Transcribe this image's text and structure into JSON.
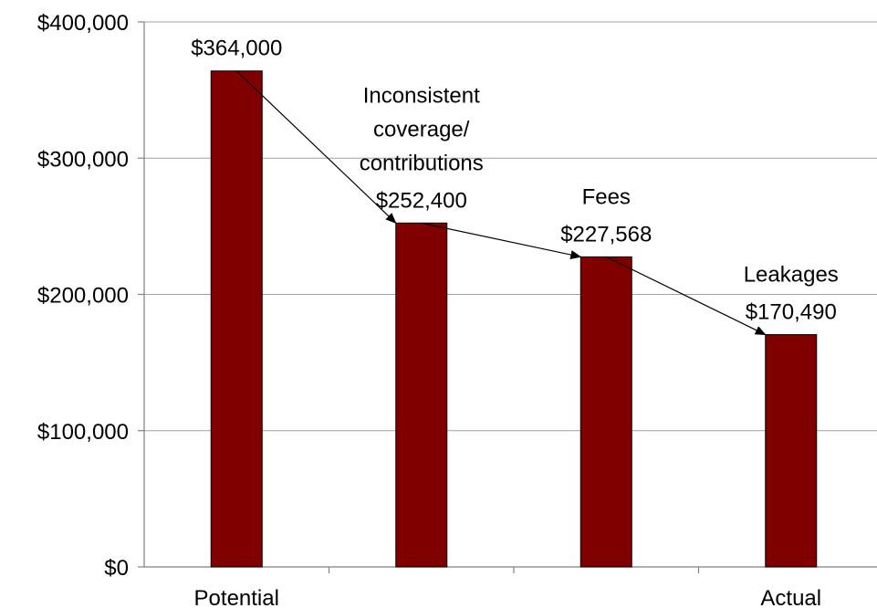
{
  "chart_data": {
    "type": "bar",
    "bars": [
      {
        "category": "Potential",
        "value": 364000,
        "label": "$364,000",
        "annotation": []
      },
      {
        "category": "",
        "value": 252400,
        "label": "$252,400",
        "annotation": [
          "Inconsistent",
          "coverage/",
          "contributions"
        ]
      },
      {
        "category": "",
        "value": 227568,
        "label": "$227,568",
        "annotation": [
          "Fees"
        ]
      },
      {
        "category": "Actual",
        "value": 170490,
        "label": "$170,490",
        "annotation": [
          "Leakages"
        ]
      }
    ],
    "ylim": [
      0,
      400000
    ],
    "yticks": [
      {
        "value": 0,
        "label": "$0"
      },
      {
        "value": 100000,
        "label": "$100,000"
      },
      {
        "value": 200000,
        "label": "$200,000"
      },
      {
        "value": 300000,
        "label": "$300,000"
      },
      {
        "value": 400000,
        "label": "$400,000"
      }
    ],
    "grid": true,
    "arrows_between_bars": true,
    "colors": {
      "bar": "#800000",
      "grid": "#a0a0a0",
      "axis": "#808080"
    }
  }
}
